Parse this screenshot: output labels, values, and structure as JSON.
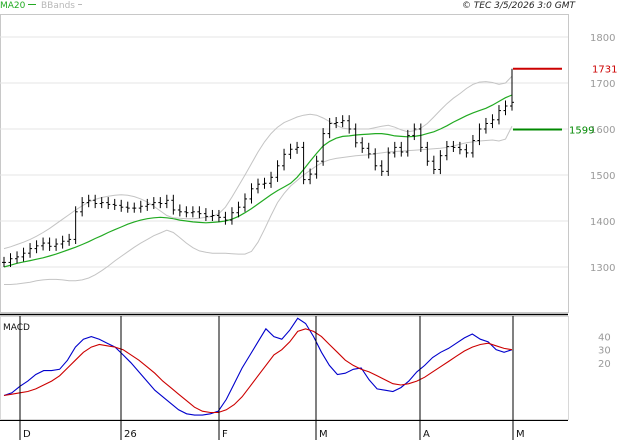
{
  "header": {
    "legend": [
      {
        "label": "MA20",
        "color": "#22aa22"
      },
      {
        "label": "BBands",
        "color": "#b8b8b8"
      }
    ],
    "copyright": "© TEC 3/5/2026 3:0 GMT"
  },
  "chart_data": [
    {
      "type": "line",
      "panel": "price",
      "ylim": [
        1200,
        1850
      ],
      "yticks": [
        1300,
        1400,
        1500,
        1600,
        1700,
        1800
      ],
      "ytick_labels": [
        "1300",
        "1400",
        "1500",
        "1600",
        "1700",
        "1800"
      ],
      "x_labels": [
        "D",
        "26",
        "F",
        "M",
        "A",
        "M"
      ],
      "grid": true,
      "price_lines": [
        {
          "label": "1731",
          "value": 1731,
          "color": "#cc0000"
        },
        {
          "label": "1599",
          "value": 1599,
          "color": "#008800"
        }
      ],
      "series": [
        {
          "name": "MA20",
          "color": "#22aa22",
          "values": [
            1300,
            1304,
            1308,
            1311,
            1314,
            1317,
            1320,
            1324,
            1328,
            1333,
            1338,
            1343,
            1349,
            1355,
            1362,
            1368,
            1375,
            1381,
            1387,
            1393,
            1398,
            1402,
            1405,
            1407,
            1408,
            1407,
            1405,
            1402,
            1400,
            1398,
            1397,
            1396,
            1397,
            1398,
            1400,
            1404,
            1410,
            1418,
            1427,
            1437,
            1447,
            1457,
            1466,
            1474,
            1482,
            1495,
            1512,
            1530,
            1547,
            1563,
            1573,
            1580,
            1584,
            1585,
            1587,
            1588,
            1589,
            1590,
            1590,
            1588,
            1585,
            1584,
            1583,
            1584,
            1586,
            1590,
            1594,
            1600,
            1607,
            1615,
            1622,
            1629,
            1635,
            1640,
            1645,
            1652,
            1660,
            1668,
            1674
          ]
        },
        {
          "name": "BBands upper",
          "color": "#c4c4c4",
          "values": [
            1340,
            1344,
            1349,
            1354,
            1360,
            1367,
            1375,
            1384,
            1394,
            1404,
            1414,
            1424,
            1433,
            1441,
            1447,
            1451,
            1454,
            1456,
            1457,
            1456,
            1453,
            1448,
            1441,
            1432,
            1422,
            1412,
            1407,
            1406,
            1405,
            1405,
            1406,
            1408,
            1410,
            1416,
            1430,
            1452,
            1476,
            1500,
            1525,
            1550,
            1572,
            1590,
            1604,
            1614,
            1620,
            1626,
            1630,
            1632,
            1630,
            1624,
            1616,
            1608,
            1602,
            1600,
            1600,
            1600,
            1600,
            1603,
            1606,
            1608,
            1604,
            1598,
            1594,
            1596,
            1602,
            1612,
            1626,
            1641,
            1655,
            1667,
            1677,
            1688,
            1697,
            1702,
            1703,
            1701,
            1697,
            1700,
            1715
          ]
        },
        {
          "name": "BBands lower",
          "color": "#c4c4c4",
          "values": [
            1262,
            1262,
            1263,
            1265,
            1267,
            1270,
            1272,
            1273,
            1273,
            1272,
            1270,
            1270,
            1272,
            1276,
            1283,
            1292,
            1302,
            1313,
            1323,
            1333,
            1343,
            1352,
            1360,
            1368,
            1374,
            1380,
            1375,
            1364,
            1352,
            1342,
            1335,
            1332,
            1330,
            1330,
            1330,
            1329,
            1328,
            1328,
            1334,
            1354,
            1382,
            1412,
            1440,
            1460,
            1476,
            1488,
            1500,
            1510,
            1520,
            1528,
            1533,
            1536,
            1538,
            1540,
            1542,
            1543,
            1544,
            1546,
            1548,
            1550,
            1551,
            1552,
            1553,
            1554,
            1555,
            1556,
            1557,
            1558,
            1560,
            1563,
            1567,
            1570,
            1572,
            1574,
            1575,
            1576,
            1574,
            1578,
            1606
          ]
        },
        {
          "name": "Close",
          "color": "#000000",
          "values": [
            1310,
            1318,
            1322,
            1330,
            1340,
            1346,
            1352,
            1345,
            1350,
            1356,
            1360,
            1420,
            1440,
            1445,
            1438,
            1440,
            1436,
            1434,
            1430,
            1428,
            1428,
            1432,
            1436,
            1440,
            1438,
            1445,
            1424,
            1420,
            1418,
            1420,
            1416,
            1410,
            1412,
            1408,
            1402,
            1418,
            1430,
            1448,
            1470,
            1480,
            1482,
            1495,
            1520,
            1545,
            1556,
            1560,
            1490,
            1502,
            1530,
            1590,
            1612,
            1614,
            1618,
            1600,
            1570,
            1558,
            1546,
            1520,
            1508,
            1548,
            1560,
            1550,
            1586,
            1600,
            1560,
            1530,
            1512,
            1542,
            1562,
            1560,
            1555,
            1548,
            1575,
            1600,
            1612,
            1620,
            1640,
            1650,
            1658
          ]
        }
      ]
    },
    {
      "type": "line",
      "panel": "macd",
      "title": "MACD",
      "ylim": [
        -23,
        55
      ],
      "yticks": [
        20,
        30,
        40
      ],
      "ytick_labels": [
        "20",
        "30",
        "40"
      ],
      "series": [
        {
          "name": "MACD",
          "color": "#0000cc",
          "values": [
            -5,
            -3,
            2,
            6,
            11,
            14,
            14,
            15,
            22,
            32,
            38,
            40,
            38,
            35,
            32,
            26,
            20,
            13,
            6,
            -1,
            -6,
            -11,
            -16,
            -19,
            -20,
            -20,
            -19,
            -17,
            -8,
            4,
            16,
            26,
            36,
            46,
            40,
            38,
            45,
            54,
            50,
            40,
            28,
            18,
            11,
            12,
            15,
            16,
            7,
            0,
            -1,
            -2,
            1,
            6,
            13,
            18,
            24,
            28,
            31,
            35,
            39,
            42,
            38,
            36,
            30,
            28,
            30
          ]
        },
        {
          "name": "Signal",
          "color": "#cc0000",
          "values": [
            -5,
            -4,
            -3,
            -2,
            0,
            3,
            6,
            10,
            16,
            22,
            28,
            32,
            34,
            33,
            32,
            30,
            26,
            22,
            17,
            12,
            6,
            1,
            -4,
            -9,
            -14,
            -17,
            -18,
            -18,
            -16,
            -12,
            -6,
            2,
            10,
            18,
            26,
            30,
            36,
            44,
            46,
            44,
            40,
            34,
            28,
            22,
            18,
            15,
            13,
            10,
            7,
            4,
            3,
            4,
            6,
            9,
            13,
            17,
            21,
            25,
            29,
            32,
            34,
            35,
            33,
            31,
            30
          ]
        }
      ]
    }
  ]
}
